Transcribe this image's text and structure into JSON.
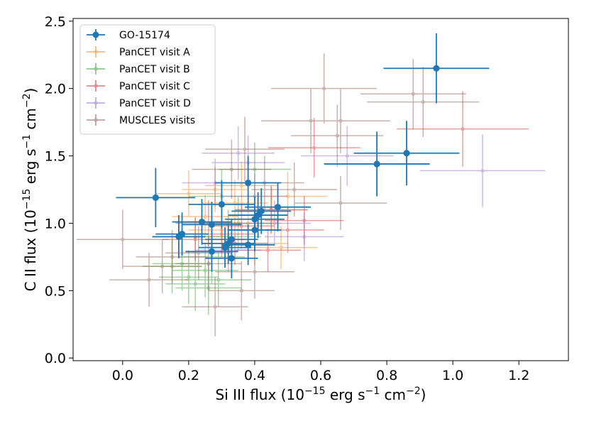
{
  "chart_data": {
    "type": "scatter",
    "title": "",
    "xlabel": {
      "main": "Si III flux (10",
      "sup1": "−15",
      "mid": " erg s",
      "sup2": "−1",
      "mid2": " cm",
      "sup3": "−2",
      "end": ")"
    },
    "ylabel": {
      "main": "C II flux (10",
      "sup1": "−15",
      "mid": " erg s",
      "sup2": "−1",
      "mid2": " cm",
      "sup3": "−2",
      "end": ")"
    },
    "xlim": [
      -0.15,
      1.35
    ],
    "ylim": [
      -0.02,
      2.52
    ],
    "xticks": [
      0.0,
      0.2,
      0.4,
      0.6,
      0.8,
      1.0,
      1.2
    ],
    "xtick_labels": [
      "0.0",
      "0.2",
      "0.4",
      "0.6",
      "0.8",
      "1.0",
      "1.2"
    ],
    "yticks": [
      0.0,
      0.5,
      1.0,
      1.5,
      2.0,
      2.5
    ],
    "ytick_labels": [
      "0.0",
      "0.5",
      "1.0",
      "1.5",
      "2.0",
      "2.5"
    ],
    "grid": false,
    "legend_position": "top-left",
    "series": [
      {
        "name": "GO-15174",
        "color": "#1f77b4",
        "marker": "large",
        "points": [
          [
            0.95,
            2.15,
            0.16,
            0.26
          ],
          [
            0.86,
            1.52,
            0.16,
            0.24
          ],
          [
            0.77,
            1.44,
            0.16,
            0.24
          ],
          [
            0.1,
            1.19,
            0.12,
            0.22
          ],
          [
            0.38,
            1.3,
            0.1,
            0.2
          ],
          [
            0.3,
            1.14,
            0.1,
            0.18
          ],
          [
            0.47,
            1.12,
            0.1,
            0.18
          ],
          [
            0.42,
            1.09,
            0.09,
            0.17
          ],
          [
            0.41,
            1.06,
            0.09,
            0.17
          ],
          [
            0.4,
            1.03,
            0.09,
            0.17
          ],
          [
            0.24,
            1.01,
            0.09,
            0.17
          ],
          [
            0.27,
            0.99,
            0.09,
            0.17
          ],
          [
            0.4,
            0.95,
            0.08,
            0.16
          ],
          [
            0.18,
            0.92,
            0.08,
            0.16
          ],
          [
            0.17,
            0.9,
            0.08,
            0.16
          ],
          [
            0.33,
            0.88,
            0.08,
            0.15
          ],
          [
            0.32,
            0.85,
            0.08,
            0.15
          ],
          [
            0.31,
            0.82,
            0.08,
            0.15
          ],
          [
            0.38,
            0.84,
            0.08,
            0.15
          ],
          [
            0.27,
            0.79,
            0.08,
            0.15
          ],
          [
            0.33,
            0.74,
            0.08,
            0.15
          ]
        ]
      },
      {
        "name": "PanCET visit A",
        "color": "#ff7f0e",
        "marker": "small",
        "points": [
          [
            0.2,
            1.22,
            0.1,
            0.17
          ],
          [
            0.28,
            1.25,
            0.1,
            0.17
          ],
          [
            0.36,
            1.28,
            0.11,
            0.18
          ],
          [
            0.25,
            1.05,
            0.1,
            0.16
          ],
          [
            0.34,
            1.15,
            0.1,
            0.17
          ],
          [
            0.45,
            1.1,
            0.11,
            0.17
          ],
          [
            0.4,
            0.85,
            0.1,
            0.16
          ],
          [
            0.3,
            0.95,
            0.1,
            0.16
          ],
          [
            0.5,
            1.2,
            0.12,
            0.18
          ],
          [
            0.22,
            0.9,
            0.09,
            0.15
          ],
          [
            0.38,
            1.0,
            0.1,
            0.16
          ],
          [
            0.48,
            0.82,
            0.11,
            0.16
          ]
        ]
      },
      {
        "name": "PanCET visit B",
        "color": "#2ca02c",
        "marker": "small",
        "points": [
          [
            0.18,
            0.7,
            0.09,
            0.2
          ],
          [
            0.2,
            0.6,
            0.09,
            0.2
          ],
          [
            0.25,
            0.65,
            0.1,
            0.2
          ],
          [
            0.22,
            0.55,
            0.09,
            0.2
          ],
          [
            0.27,
            0.75,
            0.1,
            0.2
          ],
          [
            0.29,
            0.58,
            0.1,
            0.2
          ],
          [
            0.32,
            0.9,
            0.1,
            0.2
          ],
          [
            0.35,
            1.0,
            0.1,
            0.2
          ],
          [
            0.4,
            1.4,
            0.11,
            0.2
          ],
          [
            0.3,
            1.2,
            0.1,
            0.2
          ],
          [
            0.15,
            0.68,
            0.09,
            0.2
          ],
          [
            0.26,
            0.52,
            0.1,
            0.2
          ]
        ]
      },
      {
        "name": "PanCET visit C",
        "color": "#d62728",
        "marker": "small",
        "points": [
          [
            1.03,
            1.7,
            0.2,
            0.28
          ],
          [
            0.58,
            1.56,
            0.14,
            0.22
          ],
          [
            0.55,
            1.02,
            0.12,
            0.18
          ],
          [
            0.45,
            1.1,
            0.11,
            0.18
          ],
          [
            0.36,
            0.98,
            0.1,
            0.17
          ],
          [
            0.3,
            0.92,
            0.1,
            0.17
          ],
          [
            0.26,
            1.0,
            0.1,
            0.17
          ],
          [
            0.34,
            0.85,
            0.1,
            0.16
          ],
          [
            0.44,
            0.8,
            0.1,
            0.16
          ],
          [
            0.22,
            0.88,
            0.1,
            0.16
          ],
          [
            0.5,
            0.95,
            0.11,
            0.17
          ]
        ]
      },
      {
        "name": "PanCET visit D",
        "color": "#9467bd",
        "marker": "small",
        "points": [
          [
            1.09,
            1.39,
            0.19,
            0.27
          ],
          [
            0.68,
            1.5,
            0.14,
            0.22
          ],
          [
            0.55,
            0.9,
            0.12,
            0.18
          ],
          [
            0.4,
            1.2,
            0.1,
            0.17
          ],
          [
            0.35,
            1.52,
            0.11,
            0.2
          ],
          [
            0.28,
            1.3,
            0.1,
            0.18
          ],
          [
            0.46,
            1.0,
            0.11,
            0.17
          ],
          [
            0.32,
            0.8,
            0.1,
            0.16
          ],
          [
            0.38,
            1.45,
            0.11,
            0.2
          ]
        ]
      },
      {
        "name": "MUSCLES visits",
        "color": "#8c564b",
        "marker": "small",
        "points": [
          [
            0.61,
            2.0,
            0.16,
            0.26
          ],
          [
            0.88,
            1.96,
            0.16,
            0.26
          ],
          [
            0.91,
            1.9,
            0.17,
            0.26
          ],
          [
            0.57,
            1.76,
            0.15,
            0.24
          ],
          [
            0.66,
            1.76,
            0.15,
            0.24
          ],
          [
            0.65,
            1.65,
            0.14,
            0.23
          ],
          [
            0.66,
            1.15,
            0.14,
            0.2
          ],
          [
            0.0,
            0.88,
            0.14,
            0.22
          ],
          [
            0.12,
            0.68,
            0.12,
            0.2
          ],
          [
            0.08,
            0.58,
            0.12,
            0.2
          ],
          [
            0.28,
            0.38,
            0.1,
            0.22
          ],
          [
            0.36,
            0.5,
            0.1,
            0.22
          ],
          [
            0.26,
            0.7,
            0.1,
            0.2
          ],
          [
            0.33,
            1.4,
            0.12,
            0.22
          ],
          [
            0.37,
            1.55,
            0.12,
            0.24
          ],
          [
            0.23,
            0.78,
            0.1,
            0.2
          ],
          [
            0.4,
            0.64,
            0.12,
            0.2
          ],
          [
            0.52,
            1.25,
            0.13,
            0.2
          ],
          [
            0.15,
            0.75,
            0.11,
            0.2
          ],
          [
            0.43,
            1.3,
            0.12,
            0.2
          ]
        ]
      }
    ]
  }
}
